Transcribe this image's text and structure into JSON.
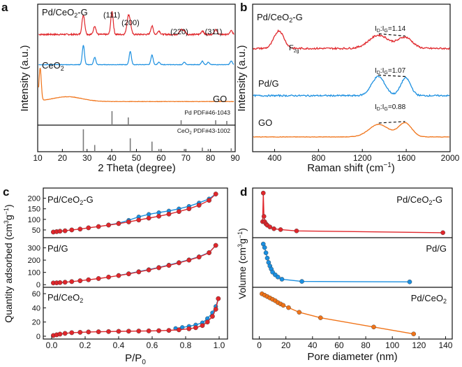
{
  "chart_data": [
    {
      "panel": "a",
      "type": "line",
      "xlabel": "2 Theta (degree)",
      "ylabel": "Intensity (a.u.)",
      "xlim": [
        10,
        90
      ],
      "xticks": [
        "10",
        "20",
        "30",
        "40",
        "50",
        "60",
        "70",
        "80",
        "90"
      ],
      "colors": {
        "red": "#e0262b",
        "blue": "#1b8fe0",
        "orange": "#f07318",
        "gray": "#7a7a7a"
      },
      "series": [
        {
          "name": "Pd/CeO2-G",
          "label_main": "Pd/CeO",
          "label_sub": "2",
          "label_tail": "-G",
          "color": "#e0262b",
          "baseline": 0.25,
          "noise": 0.012,
          "peaks": [
            [
              28.5,
              0.16,
              0.55
            ],
            [
              33.1,
              0.07,
              0.5
            ],
            [
              40.1,
              0.19,
              0.5
            ],
            [
              46.7,
              0.14,
              0.6
            ],
            [
              47.5,
              0.06,
              0.5
            ],
            [
              56.3,
              0.07,
              0.5
            ],
            [
              59.1,
              0.03,
              0.5
            ],
            [
              68.1,
              0.04,
              0.6
            ],
            [
              69.4,
              0.03,
              0.5
            ],
            [
              76.7,
              0.03,
              0.5
            ],
            [
              82.1,
              0.04,
              0.6
            ],
            [
              88.4,
              0.03,
              0.5
            ]
          ]
        },
        {
          "name": "CeO2",
          "label_main": "CeO",
          "label_sub": "2",
          "label_tail": "",
          "color": "#1b8fe0",
          "baseline": 0.5,
          "noise": 0.004,
          "peaks": [
            [
              28.5,
              0.16,
              0.45
            ],
            [
              33.1,
              0.06,
              0.45
            ],
            [
              47.5,
              0.11,
              0.45
            ],
            [
              56.3,
              0.08,
              0.45
            ],
            [
              59.1,
              0.02,
              0.45
            ],
            [
              69.4,
              0.02,
              0.45
            ],
            [
              76.7,
              0.03,
              0.45
            ],
            [
              79.1,
              0.02,
              0.45
            ],
            [
              88.4,
              0.03,
              0.45
            ]
          ]
        },
        {
          "name": "GO",
          "label_main": "GO",
          "label_sub": "",
          "label_tail": "",
          "color": "#f07318",
          "baseline": 0.805,
          "noise": 0.003,
          "peaks": [
            [
              11.0,
              0.27,
              0.45
            ],
            [
              22,
              0.04,
              6
            ]
          ]
        }
      ],
      "peak_labels": [
        {
          "text": "(111)",
          "x": 40.1
        },
        {
          "text": "(200)",
          "x": 46.7
        },
        {
          "text": "(220)",
          "x": 68.1
        },
        {
          "text": "(311)",
          "x": 82.1
        }
      ],
      "reference_pd": {
        "label": "Pd PDF#46-1043",
        "lines": [
          [
            40.1,
            1.0
          ],
          [
            46.7,
            0.55
          ],
          [
            68.1,
            0.35
          ],
          [
            82.1,
            0.35
          ],
          [
            86.6,
            0.3
          ]
        ]
      },
      "reference_ceo2": {
        "label_main": "CeO",
        "label_sub": "2",
        "label_tail": " PDF#43-1002",
        "lines": [
          [
            28.5,
            1.0
          ],
          [
            33.1,
            0.3
          ],
          [
            47.5,
            0.6
          ],
          [
            56.3,
            0.45
          ],
          [
            59.1,
            0.12
          ],
          [
            69.4,
            0.12
          ],
          [
            76.7,
            0.18
          ],
          [
            79.1,
            0.12
          ],
          [
            88.4,
            0.15
          ]
        ]
      }
    },
    {
      "panel": "b",
      "type": "line",
      "xlabel_main": "Raman shift (cm",
      "xlabel_sup": "−1",
      "xlabel_tail": ")",
      "ylabel": "Intensity (a.u.)",
      "xlim": [
        200,
        2000
      ],
      "xticks": [
        "400",
        "800",
        "1200",
        "1600",
        "2000"
      ],
      "f2g_main": "F",
      "f2g_sub": "2g",
      "series": [
        {
          "name": "Pd/CeO2-G",
          "label_main": "Pd/CeO",
          "label_sub": "2",
          "label_tail": "-G",
          "color": "#e0262b",
          "baseline": 0.3,
          "noise": 0.012,
          "ratio": "=1.14",
          "peaks": [
            [
              440,
              0.12,
              45
            ],
            [
              1350,
              0.09,
              90
            ],
            [
              1590,
              0.075,
              65
            ]
          ]
        },
        {
          "name": "Pd/G",
          "label_main": "Pd/G",
          "label_sub": "",
          "label_tail": "",
          "color": "#1b8fe0",
          "baseline": 0.62,
          "noise": 0.01,
          "ratio": "=1.07",
          "peaks": [
            [
              1345,
              0.13,
              60
            ],
            [
              1595,
              0.12,
              45
            ]
          ]
        },
        {
          "name": "GO",
          "label_main": "GO",
          "label_sub": "",
          "label_tail": "",
          "color": "#f07318",
          "baseline": 0.9,
          "noise": 0.003,
          "ratio": "=0.88",
          "peaks": [
            [
              1350,
              0.085,
              90
            ],
            [
              1590,
              0.095,
              60
            ]
          ]
        }
      ]
    },
    {
      "panel": "c",
      "type": "line",
      "xlabel_main": "P/P",
      "xlabel_sub": "0",
      "ylabel_main": "Quantity adsorbed (cm",
      "ylabel_sup": "3",
      "ylabel_mid": "g",
      "ylabel_sup2": "−1",
      "ylabel_tail": ")",
      "xlim": [
        -0.05,
        1.05
      ],
      "xticks": [
        "0.0",
        "0.2",
        "0.4",
        "0.6",
        "0.8",
        "1.0"
      ],
      "panels": [
        {
          "label_main": "Pd/CeO",
          "label_sub": "2",
          "label_tail": "-G",
          "ylim": [
            20,
            235
          ],
          "yticks": [
            "50",
            "100",
            "150",
            "200"
          ],
          "adsorption": {
            "x": [
              0.01,
              0.03,
              0.05,
              0.08,
              0.12,
              0.17,
              0.22,
              0.28,
              0.34,
              0.4,
              0.46,
              0.52,
              0.58,
              0.64,
              0.7,
              0.76,
              0.82,
              0.88,
              0.94,
              0.98
            ],
            "y": [
              40,
              42,
              44,
              46,
              50,
              54,
              60,
              66,
              73,
              80,
              88,
              97,
              106,
              115,
              125,
              137,
              150,
              167,
              190,
              220
            ]
          },
          "desorption": {
            "x": [
              0.98,
              0.94,
              0.88,
              0.82,
              0.76,
              0.7,
              0.64,
              0.58,
              0.52,
              0.46,
              0.4,
              0.34
            ],
            "y": [
              220,
              197,
              178,
              162,
              150,
              140,
              132,
              124,
              112,
              96,
              82,
              74
            ]
          }
        },
        {
          "label_main": "Pd/G",
          "label_sub": "",
          "label_tail": "",
          "ylim": [
            -10,
            360
          ],
          "yticks": [
            "0",
            "100",
            "200",
            "300"
          ],
          "adsorption": {
            "x": [
              0.01,
              0.03,
              0.05,
              0.08,
              0.12,
              0.17,
              0.22,
              0.28,
              0.34,
              0.4,
              0.46,
              0.52,
              0.58,
              0.64,
              0.7,
              0.76,
              0.82,
              0.88,
              0.94,
              0.98
            ],
            "y": [
              14,
              15,
              17,
              20,
              25,
              32,
              40,
              50,
              62,
              74,
              88,
              104,
              120,
              138,
              157,
              178,
              200,
              225,
              260,
              320
            ]
          },
          "desorption": {
            "x": [
              0.98,
              0.94,
              0.88,
              0.82,
              0.76,
              0.7,
              0.64,
              0.58,
              0.52,
              0.46,
              0.4
            ],
            "y": [
              320,
              262,
              228,
              203,
              181,
              160,
              141,
              123,
              107,
              90,
              76
            ]
          }
        },
        {
          "label_main": "Pd/CeO",
          "label_sub": "2",
          "label_tail": "",
          "ylim": [
            -2,
            65
          ],
          "yticks": [
            "0",
            "20",
            "40",
            "60"
          ],
          "adsorption": {
            "x": [
              0.01,
              0.03,
              0.05,
              0.08,
              0.12,
              0.17,
              0.22,
              0.28,
              0.34,
              0.4,
              0.46,
              0.52,
              0.58,
              0.64,
              0.7,
              0.76,
              0.82,
              0.86,
              0.9,
              0.93,
              0.96,
              0.98,
              0.995
            ],
            "y": [
              1,
              2,
              3,
              4,
              5,
              5.5,
              6,
              6.3,
              6.6,
              6.9,
              7.1,
              7.3,
              7.5,
              7.8,
              8.2,
              9,
              10.5,
              12,
              15,
              20,
              28,
              38,
              53
            ]
          },
          "desorption": {
            "x": [
              0.995,
              0.98,
              0.96,
              0.93,
              0.9,
              0.86,
              0.82,
              0.78,
              0.74
            ],
            "y": [
              53,
              42,
              33,
              25,
              19,
              16,
              14,
              12.5,
              11
            ]
          }
        }
      ]
    },
    {
      "panel": "d",
      "type": "line",
      "xlabel": "Pore diameter (nm)",
      "ylabel_main": "Volume (cm",
      "ylabel_sup": "3",
      "ylabel_mid": "g",
      "ylabel_sup2": "−1",
      "ylabel_tail": ")",
      "xlim": [
        -5,
        145
      ],
      "xticks": [
        "0",
        "20",
        "40",
        "60",
        "80",
        "100",
        "120",
        "140"
      ],
      "panels": [
        {
          "label_main": "Pd/CeO",
          "label_sub": "2",
          "label_tail": "-G",
          "color": "#e0262b",
          "ylim": [
            0,
            1
          ],
          "x": [
            2.5,
            3,
            3.5,
            4,
            5,
            6,
            8,
            11,
            16,
            28,
            138
          ],
          "y": [
            0.3,
            0.95,
            0.42,
            0.3,
            0.25,
            0.22,
            0.18,
            0.14,
            0.12,
            0.09,
            0.05
          ]
        },
        {
          "label_main": "Pd/G",
          "label_sub": "",
          "label_tail": "",
          "color": "#1b8fe0",
          "ylim": [
            0,
            1
          ],
          "x": [
            3,
            4,
            5,
            6,
            7,
            8,
            9,
            10,
            12,
            14,
            17,
            32,
            113
          ],
          "y": [
            0.92,
            0.84,
            0.72,
            0.6,
            0.5,
            0.42,
            0.35,
            0.28,
            0.22,
            0.17,
            0.12,
            0.07,
            0.06
          ]
        },
        {
          "label_main": "Pd/CeO",
          "label_sub": "2",
          "label_tail": "",
          "color": "#f07318",
          "ylim": [
            0,
            1
          ],
          "x": [
            2,
            4,
            6,
            8,
            10,
            12,
            14,
            16,
            18,
            22,
            30,
            46,
            86,
            116
          ],
          "y": [
            0.92,
            0.89,
            0.86,
            0.83,
            0.8,
            0.77,
            0.73,
            0.7,
            0.67,
            0.62,
            0.52,
            0.4,
            0.2,
            0.05
          ]
        }
      ]
    }
  ],
  "panel_letters": {
    "a": "a",
    "b": "b",
    "c": "c",
    "d": "d"
  },
  "ratio_label": {
    "prefix": "I",
    "sub_d": "D",
    "colon": ":I",
    "sub_g": "G"
  }
}
